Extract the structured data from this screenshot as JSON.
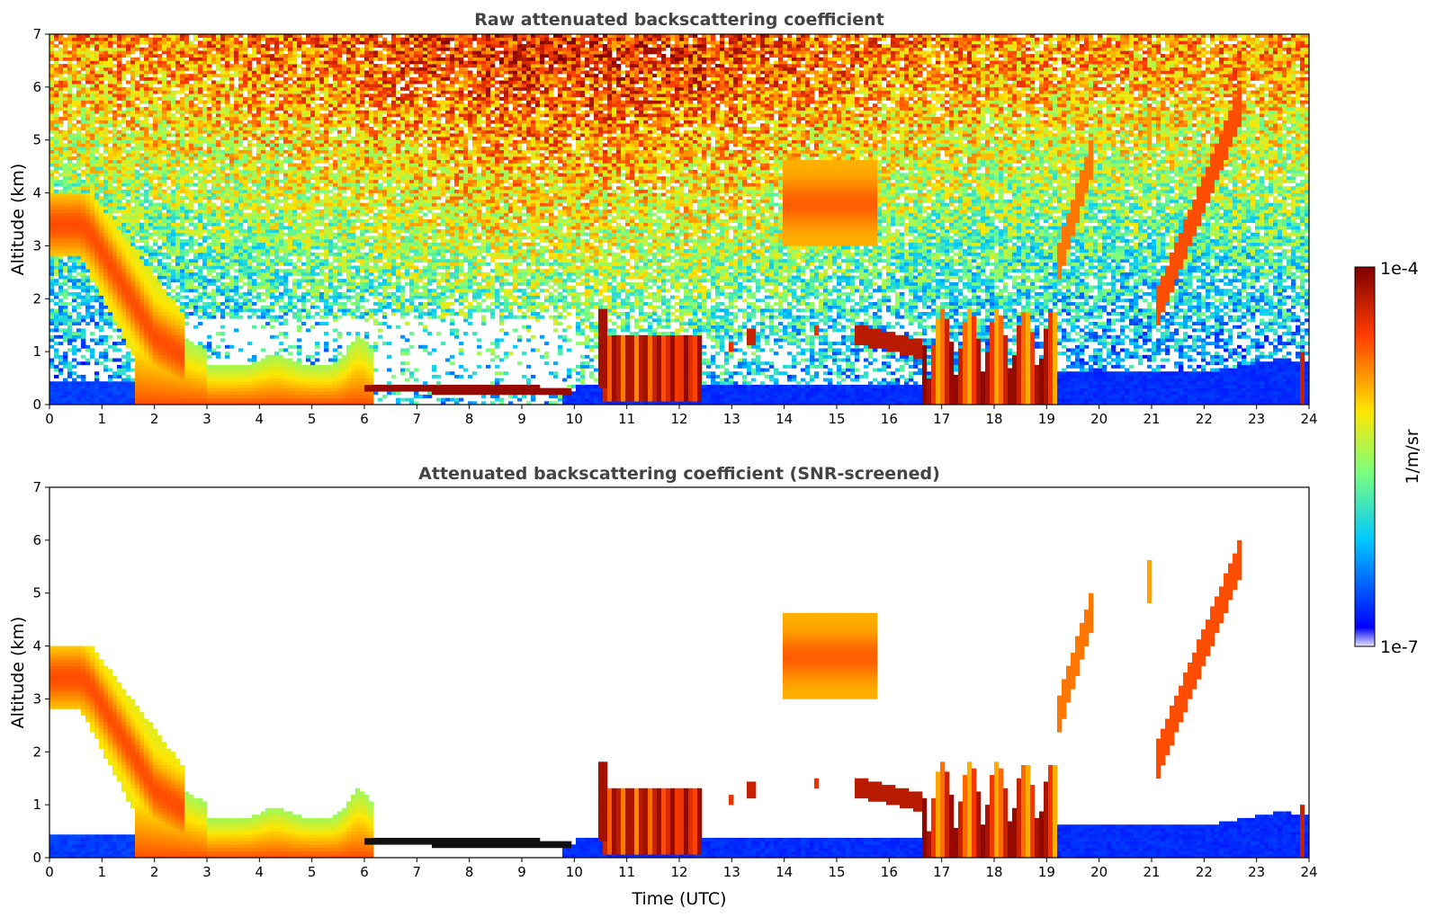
{
  "chart_data": [
    {
      "type": "heatmap",
      "title": "Raw attenuated backscattering coefficient",
      "xlabel": "",
      "ylabel": "Altitude (km)",
      "xlim": [
        0,
        24
      ],
      "ylim": [
        0,
        7
      ],
      "x_ticks": [
        "0",
        "1",
        "2",
        "3",
        "4",
        "5",
        "6",
        "7",
        "8",
        "9",
        "10",
        "11",
        "12",
        "13",
        "14",
        "15",
        "16",
        "17",
        "18",
        "19",
        "20",
        "21",
        "22",
        "23",
        "24"
      ],
      "y_ticks": [
        "0",
        "1",
        "2",
        "3",
        "4",
        "5",
        "6",
        "7"
      ],
      "screened": false
    },
    {
      "type": "heatmap",
      "title": "Attenuated backscattering coefficient (SNR-screened)",
      "xlabel": "Time (UTC)",
      "ylabel": "Altitude (km)",
      "xlim": [
        0,
        24
      ],
      "ylim": [
        0,
        7
      ],
      "x_ticks": [
        "0",
        "1",
        "2",
        "3",
        "4",
        "5",
        "6",
        "7",
        "8",
        "9",
        "10",
        "11",
        "12",
        "13",
        "14",
        "15",
        "16",
        "17",
        "18",
        "19",
        "20",
        "21",
        "22",
        "23",
        "24"
      ],
      "y_ticks": [
        "0",
        "1",
        "2",
        "3",
        "4",
        "5",
        "6",
        "7"
      ],
      "screened": true
    }
  ],
  "colorbar": {
    "label": "1/m/sr",
    "max_label": "1e-4",
    "min_label": "1e-7",
    "scale": "log",
    "colors": [
      "#e8e8ff",
      "#0000ff",
      "#00c8ff",
      "#7cff7c",
      "#ffe600",
      "#ff3c00",
      "#800000"
    ]
  }
}
